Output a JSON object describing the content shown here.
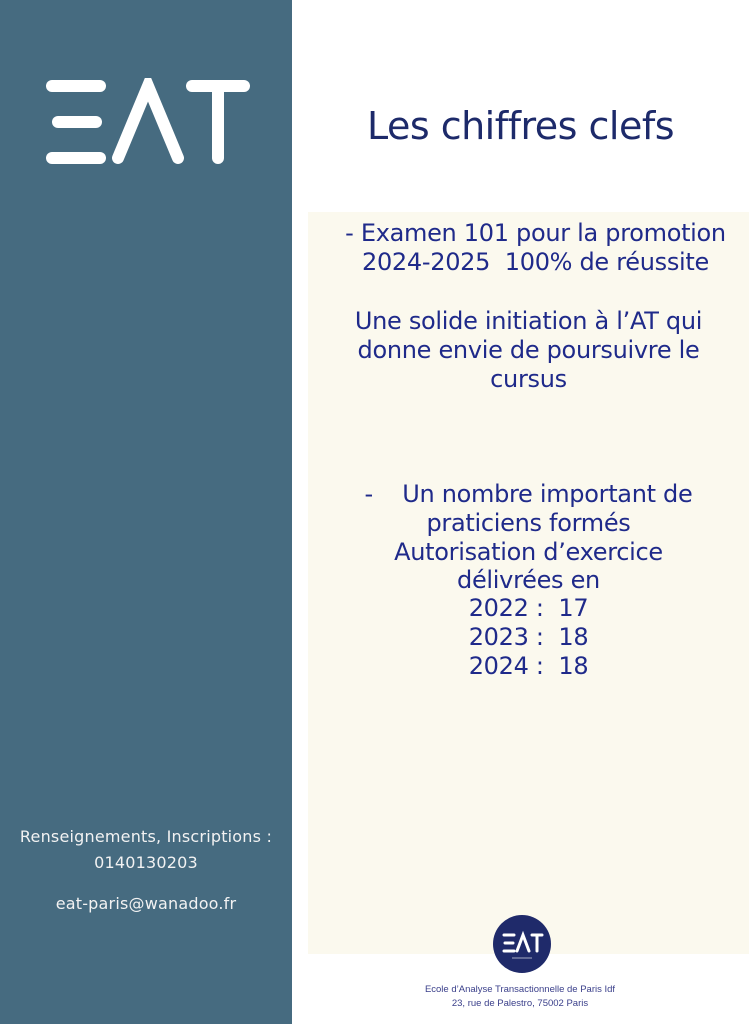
{
  "sidebar": {
    "logo_text": "EAT",
    "contact_label": "Renseignements, Inscriptions :",
    "contact_phone": "0140130203",
    "contact_email": "eat-paris@wanadoo.fr"
  },
  "main": {
    "title": "Les chiffres clefs",
    "lines": [
      "- Examen 101 pour la promotion",
      "2024-2025  100% de réussite",
      "Une solide initiation à l’AT qui",
      "donne envie de poursuivre le",
      "cursus",
      "-    Un nombre important de",
      "praticiens formés",
      "Autorisation d’exercice",
      "délivrées en",
      "2022 :  17",
      "2023 :  18",
      "2024 :  18"
    ]
  },
  "footer": {
    "logo_text": "EAT",
    "school_name": "Ecole d’Analyse Transactionnelle de Paris Idf",
    "address": "23, rue de Palestro, 75002 Paris"
  },
  "colors": {
    "sidebar": "#466b80",
    "title": "#1d2a6a",
    "body_text": "#1f2a8a",
    "panel": "#fbf9ee"
  }
}
